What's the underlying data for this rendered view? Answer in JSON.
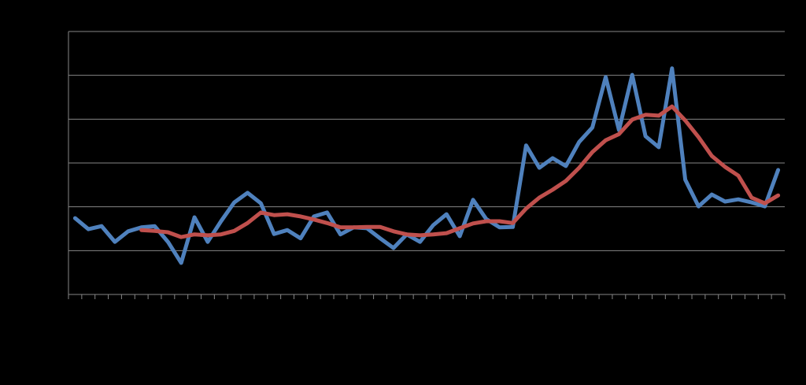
{
  "chart_data": {
    "type": "line",
    "categories": [
      null,
      null,
      null,
      null,
      null,
      null,
      null,
      null,
      null,
      null,
      null,
      null,
      null,
      null,
      null,
      null,
      null,
      null,
      null,
      null,
      null,
      null,
      null,
      null,
      null,
      null,
      null,
      null,
      null,
      null,
      null,
      null,
      null,
      null,
      null,
      null,
      null,
      null,
      null,
      null,
      null,
      null,
      null,
      null,
      null,
      null,
      null,
      null,
      null,
      null,
      null,
      null,
      null,
      null
    ],
    "series": [
      {
        "color": "#4f81bd",
        "values": [
          1.74,
          1.49,
          1.56,
          1.2,
          1.44,
          1.53,
          1.56,
          1.2,
          0.72,
          1.76,
          1.2,
          1.67,
          2.1,
          2.32,
          2.08,
          1.38,
          1.47,
          1.28,
          1.78,
          1.87,
          1.37,
          1.53,
          1.51,
          1.28,
          1.06,
          1.37,
          1.2,
          1.58,
          1.83,
          1.33,
          2.16,
          1.72,
          1.53,
          1.54,
          3.4,
          2.89,
          3.11,
          2.93,
          3.48,
          3.81,
          4.96,
          3.75,
          5.01,
          3.61,
          3.36,
          5.16,
          2.62,
          2.01,
          2.28,
          2.12,
          2.17,
          2.1,
          2.01,
          2.84
        ]
      },
      {
        "color": "#c0504d",
        "values": [
          null,
          null,
          null,
          null,
          null,
          1.47,
          1.45,
          1.42,
          1.31,
          1.37,
          1.35,
          1.37,
          1.45,
          1.63,
          1.87,
          1.81,
          1.83,
          1.78,
          1.71,
          1.63,
          1.53,
          1.53,
          1.54,
          1.54,
          1.44,
          1.37,
          1.35,
          1.37,
          1.4,
          1.51,
          1.62,
          1.67,
          1.67,
          1.63,
          1.96,
          2.21,
          2.39,
          2.59,
          2.89,
          3.25,
          3.52,
          3.66,
          3.99,
          4.1,
          4.08,
          4.29,
          3.97,
          3.59,
          3.16,
          2.91,
          2.71,
          2.21,
          2.08,
          2.26
        ]
      }
    ],
    "ylim": [
      0,
      6
    ],
    "yticks": [
      0,
      1,
      2,
      3,
      4,
      5,
      6
    ],
    "grid": true
  }
}
